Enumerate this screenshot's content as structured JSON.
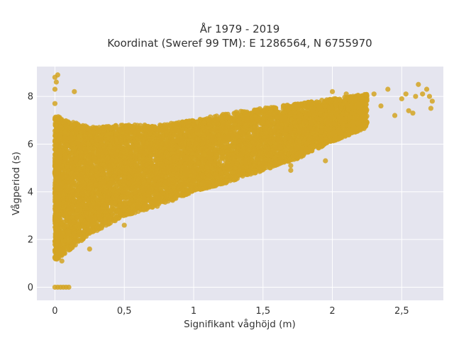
{
  "chart_data": {
    "type": "scatter",
    "title_line1": "År 1979 - 2019",
    "title_line2": "Koordinat (Sweref 99 TM): E 1286564, N 6755970",
    "xlabel": "Signifikant våghöjd (m)",
    "ylabel": "Vågperiod (s)",
    "xlim": [
      -0.13,
      2.8
    ],
    "ylim": [
      -0.55,
      9.25
    ],
    "x_ticks": [
      0,
      0.5,
      1,
      1.5,
      2,
      2.5
    ],
    "x_tick_labels": [
      "0",
      "0,5",
      "1",
      "1,5",
      "2",
      "2,5"
    ],
    "y_ticks": [
      0,
      2,
      4,
      6,
      8
    ],
    "y_tick_labels": [
      "0",
      "2",
      "4",
      "6",
      "8"
    ],
    "grid": true,
    "legend": "none",
    "series": [
      {
        "color": "#d4a422",
        "point_cloud_envelope": [
          {
            "x": 0.0,
            "ymin": 1.1,
            "ymax": 7.2
          },
          {
            "x": 0.25,
            "ymin": 2.2,
            "ymax": 6.7
          },
          {
            "x": 0.5,
            "ymin": 3.0,
            "ymax": 6.8
          },
          {
            "x": 0.75,
            "ymin": 3.4,
            "ymax": 6.8
          },
          {
            "x": 1.0,
            "ymin": 4.0,
            "ymax": 7.0
          },
          {
            "x": 1.25,
            "ymin": 4.4,
            "ymax": 7.3
          },
          {
            "x": 1.5,
            "ymin": 4.9,
            "ymax": 7.5
          },
          {
            "x": 1.75,
            "ymin": 5.4,
            "ymax": 7.7
          },
          {
            "x": 2.0,
            "ymin": 6.1,
            "ymax": 7.9
          },
          {
            "x": 2.25,
            "ymin": 6.7,
            "ymax": 8.1
          }
        ],
        "sample_points": [
          {
            "x": 0.0,
            "y": 8.8
          },
          {
            "x": 0.01,
            "y": 8.6
          },
          {
            "x": 0.0,
            "y": 8.3
          },
          {
            "x": 0.0,
            "y": 7.7
          },
          {
            "x": 0.02,
            "y": 8.9
          },
          {
            "x": 0.14,
            "y": 8.2
          },
          {
            "x": 0.0,
            "y": 0
          },
          {
            "x": 0.02,
            "y": 0
          },
          {
            "x": 0.04,
            "y": 0
          },
          {
            "x": 0.06,
            "y": 0
          },
          {
            "x": 0.08,
            "y": 0
          },
          {
            "x": 0.1,
            "y": 0
          },
          {
            "x": 2.0,
            "y": 8.2
          },
          {
            "x": 2.1,
            "y": 8.1
          },
          {
            "x": 2.2,
            "y": 8.0
          },
          {
            "x": 2.3,
            "y": 8.1
          },
          {
            "x": 2.35,
            "y": 7.6
          },
          {
            "x": 2.4,
            "y": 8.3
          },
          {
            "x": 2.45,
            "y": 7.2
          },
          {
            "x": 2.5,
            "y": 7.9
          },
          {
            "x": 2.53,
            "y": 8.1
          },
          {
            "x": 2.55,
            "y": 7.4
          },
          {
            "x": 2.6,
            "y": 8.0
          },
          {
            "x": 2.62,
            "y": 8.5
          },
          {
            "x": 2.65,
            "y": 8.1
          },
          {
            "x": 2.68,
            "y": 8.3
          },
          {
            "x": 2.7,
            "y": 8.0
          },
          {
            "x": 2.72,
            "y": 7.8
          },
          {
            "x": 2.71,
            "y": 7.5
          },
          {
            "x": 2.58,
            "y": 7.3
          },
          {
            "x": 1.95,
            "y": 5.3
          },
          {
            "x": 1.7,
            "y": 5.1
          },
          {
            "x": 1.7,
            "y": 4.9
          },
          {
            "x": 0.25,
            "y": 1.6
          },
          {
            "x": 0.05,
            "y": 1.1
          },
          {
            "x": 0.5,
            "y": 2.6
          }
        ]
      }
    ]
  }
}
